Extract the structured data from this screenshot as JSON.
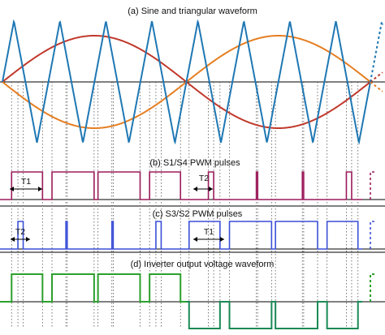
{
  "panels": {
    "a": {
      "title": "(a) Sine and triangular waveform"
    },
    "b": {
      "title": "(b) S1/S4 PWM pulses"
    },
    "c": {
      "title": "(c) S3/S2 PWM pulses"
    },
    "d": {
      "title": "(d) Inverter output voltage waveform"
    }
  },
  "annotations": {
    "b_interval_1": "T1",
    "b_interval_2": "T2",
    "c_interval_1": "T2",
    "c_interval_2": "T1"
  },
  "colors": {
    "carrier": "#1f78b4",
    "reference_positive": "#c0392b",
    "reference_negative": "#e67e22",
    "s1s4_pulses": "#9b1b5a",
    "s3s2_pulses": "#3a4fd6",
    "output_positive": "#2ca02c",
    "output_negative": "#1a8a55",
    "axis": "#000000",
    "guide_lines": "#555555",
    "panel_border": "#000000"
  },
  "carrier_cycles": 8
}
